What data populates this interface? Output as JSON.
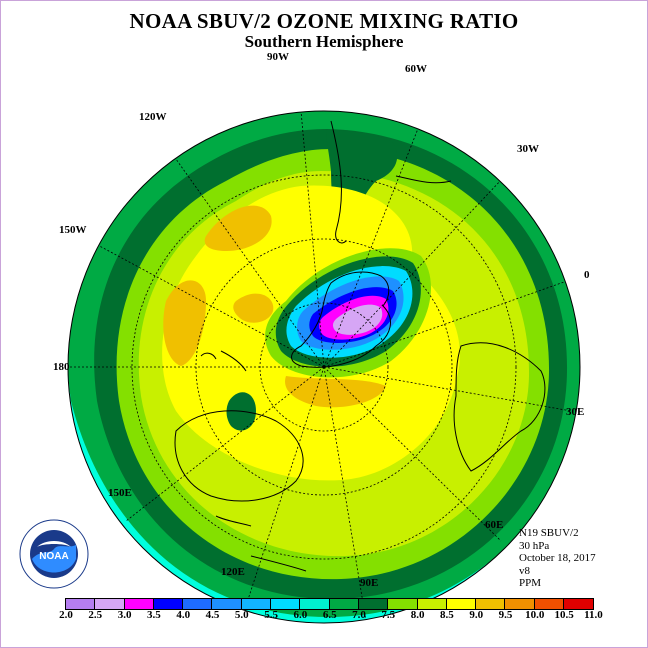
{
  "title": "NOAA SBUV/2 OZONE MIXING RATIO",
  "subtitle": "Southern Hemisphere",
  "longitude_labels": [
    "90W",
    "60W",
    "30W",
    "0",
    "30E",
    "60E",
    "90E",
    "120E",
    "150E",
    "180",
    "150W",
    "120W"
  ],
  "info": {
    "instrument": "N19 SBUV/2",
    "level": "30 hPa",
    "date": "October 18, 2017",
    "version": "v8",
    "units": "PPM"
  },
  "logo": {
    "text": "NOAA",
    "ring_text": "NATIONAL OCEANIC AND ATMOSPHERIC ADMINISTRATION · U.S. DEPARTMENT OF COMMERCE"
  },
  "colorbar": {
    "labels": [
      "2.0",
      "2.5",
      "3.0",
      "3.5",
      "4.0",
      "4.5",
      "5.0",
      "5.5",
      "6.0",
      "6.5",
      "7.0",
      "7.5",
      "8.0",
      "8.5",
      "9.0",
      "9.5",
      "10.0",
      "10.5",
      "11.0"
    ],
    "colors": [
      "#b57ef0",
      "#d6a6f5",
      "#ff00ff",
      "#0000ff",
      "#1e6cff",
      "#1e90ff",
      "#12b4ff",
      "#00dcff",
      "#00f0d0",
      "#00aa44",
      "#006f2f",
      "#84e000",
      "#c8f000",
      "#ffff00",
      "#f0c000",
      "#f09000",
      "#f05000",
      "#e00000",
      "#8a4a1a"
    ]
  },
  "colors": {
    "outer_ring": "#00ffdd",
    "dark_green": "#006f2f",
    "mid_green": "#00aa44",
    "lime": "#84e000",
    "yellow_green": "#c8f000",
    "yellow": "#ffff00",
    "orange": "#f0c000"
  }
}
